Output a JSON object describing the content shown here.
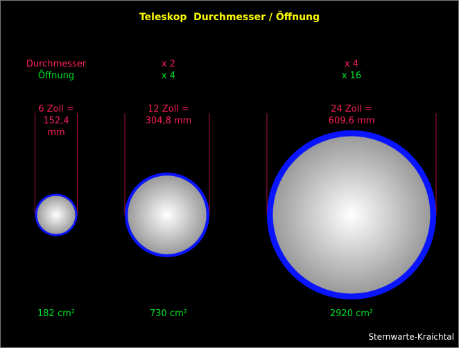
{
  "title": "Teleskop  Durchmesser / Öffnung",
  "legend": {
    "diameter_label": "Durchmesser",
    "aperture_label": "Öffnung"
  },
  "telescopes": [
    {
      "size_text": "6 Zoll =\n152,4\nmm",
      "area_text": "182 cm²",
      "diameter_factor": "",
      "aperture_factor": "",
      "diameter_in": 6
    },
    {
      "size_text": "12 Zoll =\n304,8 mm",
      "area_text": "730 cm²",
      "diameter_factor": "x 2",
      "aperture_factor": "x 4",
      "diameter_in": 12
    },
    {
      "size_text": "24 Zoll =\n609,6 mm",
      "area_text": "2920 cm²",
      "diameter_factor": "x 4",
      "aperture_factor": "x 16",
      "diameter_in": 24
    }
  ],
  "credit": "Sternwarte-Kraichtal",
  "colors": {
    "background": "#000000",
    "title": "#ffff00",
    "diameter_text": "#ff1f5a",
    "aperture_text": "#00e028",
    "rim": "#0a14ff",
    "guide_line": "#b0103c",
    "disk_center": "#ffffff",
    "disk_edge": "#8c8c8c"
  }
}
